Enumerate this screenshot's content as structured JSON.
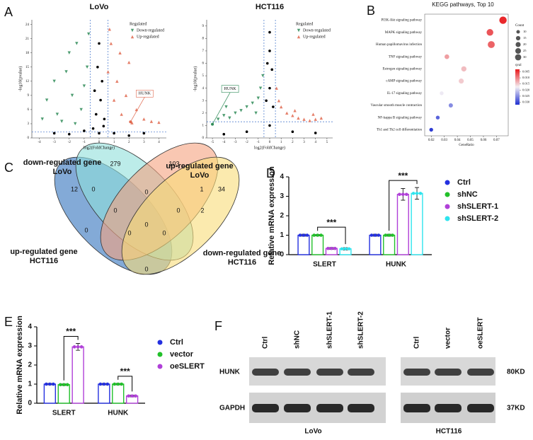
{
  "panel_labels": [
    "A",
    "B",
    "C",
    "D",
    "E",
    "F"
  ],
  "chart_data": [
    {
      "type": "scatter",
      "title": "LoVo",
      "xlabel": "log2(FoldChange)",
      "ylabel": "-log10(pvalue)",
      "xlim": [
        -4.5,
        4.5
      ],
      "ylim": [
        0,
        25
      ],
      "xticks": [
        -4,
        -3,
        -2,
        -1,
        0,
        1,
        2,
        3,
        4
      ],
      "yticks": [
        0,
        3,
        6,
        9,
        12,
        15,
        18,
        21,
        24
      ],
      "legend_title": "Regulated",
      "legend": "upper right",
      "thresholds": {
        "x": [
          -0.6,
          0.6
        ],
        "y": 1.3
      },
      "annotation": {
        "text": "HUNK",
        "x": 2.1,
        "y": 3.4
      },
      "series": [
        {
          "name": "Down-regulated",
          "color": "#2e8b57",
          "marker": "triangle-down",
          "x": [
            -3.5,
            -3,
            -2.8,
            -2.2,
            -2,
            -1.8,
            -1.5,
            -1.2,
            -1,
            -0.8,
            -0.7,
            -2.5,
            -3.8,
            -1.6
          ],
          "y": [
            8,
            12,
            5,
            14,
            18,
            9,
            20,
            6,
            11,
            15,
            22,
            3.5,
            4,
            3
          ]
        },
        {
          "name": "Up-regulated",
          "color": "#e0694f",
          "marker": "triangle-up",
          "x": [
            0.6,
            0.8,
            1,
            1.2,
            1.5,
            1.8,
            2,
            2.5,
            3,
            3.5,
            0.7,
            1.4,
            2.2,
            4
          ],
          "y": [
            14,
            20,
            8,
            12,
            5,
            9,
            16,
            6,
            4,
            3.5,
            23,
            18,
            3.2,
            3.3
          ]
        },
        {
          "color": "#000000",
          "marker": "circle",
          "x": [
            -0.4,
            0,
            0.3,
            -0.2,
            0.1,
            0.2,
            -0.1,
            0,
            -0.3,
            0.35,
            -1,
            1,
            2,
            -2,
            3,
            -3
          ],
          "y": [
            2,
            1,
            2.5,
            5,
            8,
            12,
            15,
            20,
            10,
            4,
            1.5,
            1,
            0.5,
            0.8,
            1,
            1
          ]
        }
      ]
    },
    {
      "type": "scatter",
      "title": "HCT116",
      "xlabel": "log2(FoldChange)",
      "ylabel": "-log10(pvalue)",
      "xlim": [
        -5.5,
        5.5
      ],
      "ylim": [
        0,
        9.5
      ],
      "xticks": [
        -5,
        -4,
        -3,
        -2,
        -1,
        0,
        1,
        2,
        3,
        4,
        5
      ],
      "yticks": [
        0,
        1,
        2,
        3,
        4,
        5,
        6,
        7,
        8,
        9
      ],
      "legend_title": "Regulated",
      "legend": "upper right",
      "thresholds": {
        "x": [
          -0.5,
          0.5
        ],
        "y": 1.3
      },
      "annotation": {
        "text": "HUNK",
        "x": -5.0,
        "y": 1.1
      },
      "series": [
        {
          "name": "Down-regulated",
          "color": "#2e8b57",
          "marker": "triangle-down",
          "x": [
            -4.5,
            -4,
            -3.5,
            -3,
            -2.5,
            -2,
            -1.5,
            -1,
            -0.8,
            -0.6,
            -1.2,
            -3.8
          ],
          "y": [
            1.5,
            1.8,
            1.6,
            2,
            2.2,
            2.5,
            2.8,
            3.2,
            4,
            5,
            2,
            2.5
          ]
        },
        {
          "name": "Up-regulated",
          "color": "#e0694f",
          "marker": "triangle-up",
          "x": [
            0.6,
            1,
            1.5,
            2,
            2.5,
            3,
            3.5,
            4,
            4.5,
            0.8,
            2.2,
            3.8
          ],
          "y": [
            4,
            2.5,
            2,
            1.8,
            1.6,
            1.5,
            1.4,
            1.5,
            1.6,
            3,
            2.2,
            1.9
          ]
        },
        {
          "color": "#000000",
          "marker": "circle",
          "x": [
            0,
            0,
            -0.2,
            0.2,
            0,
            -0.3,
            0.3,
            -2,
            2,
            -4,
            4,
            0
          ],
          "y": [
            8.5,
            7,
            6,
            5.5,
            4,
            3,
            2.5,
            0.5,
            0.5,
            0.3,
            0.4,
            1
          ]
        }
      ]
    },
    {
      "type": "dot",
      "title": "KEGG pathways, Top 10",
      "xlabel": "GeneRatio",
      "categories": [
        "PI3K-Akt signaling pathway",
        "MAPK signaling pathway",
        "Human papillomavirus infection",
        "TNF signaling pathway",
        "Estrogen signaling pathway",
        "cAMP signaling pathway",
        "IL-17 signaling pathway",
        "Vascular smooth muscle contraction",
        "NF-kappa B signaling pathway",
        "Th1 and Th2 cell differentiation"
      ],
      "values": [
        0.075,
        0.065,
        0.066,
        0.032,
        0.045,
        0.043,
        0.028,
        0.035,
        0.025,
        0.02
      ],
      "sizes": [
        30,
        25,
        27,
        12,
        15,
        14,
        8,
        10,
        8,
        8
      ],
      "qvals": [
        0.004,
        0.007,
        0.008,
        0.012,
        0.014,
        0.015,
        0.018,
        0.025,
        0.028,
        0.031
      ],
      "xlim": [
        0.015,
        0.079
      ],
      "xticks": [
        0.02,
        0.03,
        0.04,
        0.05,
        0.06,
        0.07
      ],
      "size_title": "Count",
      "size_ticks": [
        10,
        15,
        20,
        25,
        30
      ],
      "color_title": "qval",
      "clim": [
        0.003,
        0.032
      ],
      "color_ticks": [
        0.005,
        {
          "value": 0.01,
          "label": "0.010"
        },
        0.015,
        {
          "value": 0.02,
          "label": "0.020"
        },
        0.025,
        {
          "value": 0.03,
          "label": "0.030"
        }
      ],
      "color_range": [
        "#e8191c",
        "#f4f0f4",
        "#1f2fd1"
      ]
    },
    {
      "type": "bar",
      "ylabel": "Relative mRNA expression",
      "categories": [
        "SLERT",
        "HUNK"
      ],
      "ylim": [
        0,
        4
      ],
      "yticks": [
        0,
        1,
        2,
        3,
        4
      ],
      "legend": "right",
      "annotations": [
        "***",
        "***"
      ],
      "series": [
        {
          "name": "Ctrl",
          "color": "#2430e0",
          "values": [
            1,
            1
          ],
          "errors": [
            0.05,
            0.05
          ]
        },
        {
          "name": "shNC",
          "color": "#22c02a",
          "values": [
            1,
            1
          ],
          "errors": [
            0.04,
            0.05
          ]
        },
        {
          "name": "shSLERT-1",
          "color": "#b040d8",
          "values": [
            0.32,
            3.1
          ],
          "errors": [
            0.05,
            0.3
          ]
        },
        {
          "name": "shSLERT-2",
          "color": "#2ee4ee",
          "values": [
            0.3,
            3.15
          ],
          "errors": [
            0.06,
            0.3
          ]
        }
      ]
    },
    {
      "type": "bar",
      "ylabel": "Relative mRNA expression",
      "categories": [
        "SLERT",
        "HUNK"
      ],
      "ylim": [
        0,
        4
      ],
      "yticks": [
        0,
        1,
        2,
        3,
        4
      ],
      "legend": "right",
      "annotations": [
        "***",
        "***"
      ],
      "series": [
        {
          "name": "Ctrl",
          "color": "#2430e0",
          "values": [
            1,
            1
          ],
          "errors": [
            0.04,
            0.04
          ]
        },
        {
          "name": "vector",
          "color": "#22c02a",
          "values": [
            0.97,
            1
          ],
          "errors": [
            0.04,
            0.04
          ]
        },
        {
          "name": "oeSLERT",
          "color": "#b040d8",
          "values": [
            2.95,
            0.38
          ],
          "errors": [
            0.18,
            0.05
          ]
        }
      ]
    }
  ],
  "venn": {
    "sets": [
      [
        "down-regulated gene",
        "LoVo"
      ],
      [
        "up-regulated gene",
        "LoVo"
      ],
      [
        "up-regulated gene",
        "HCT116"
      ],
      [
        "down-regulated gene",
        "HCT116"
      ]
    ],
    "counts": [
      "279",
      "103",
      "12",
      "34",
      "0",
      "0",
      "1",
      "0",
      "0",
      "2",
      "0",
      "0",
      "0",
      "0",
      "0"
    ]
  },
  "blot": {
    "groups": [
      {
        "name": "LoVo",
        "lanes": [
          "Ctrl",
          "shNC",
          "shSLERT-1",
          "shSLERT-2"
        ]
      },
      {
        "name": "HCT116",
        "lanes": [
          "Ctrl",
          "vector",
          "oeSLERT"
        ]
      }
    ],
    "rows": [
      "HUNK",
      "GAPDH"
    ],
    "sizes": [
      "80KD",
      "37KD"
    ]
  }
}
